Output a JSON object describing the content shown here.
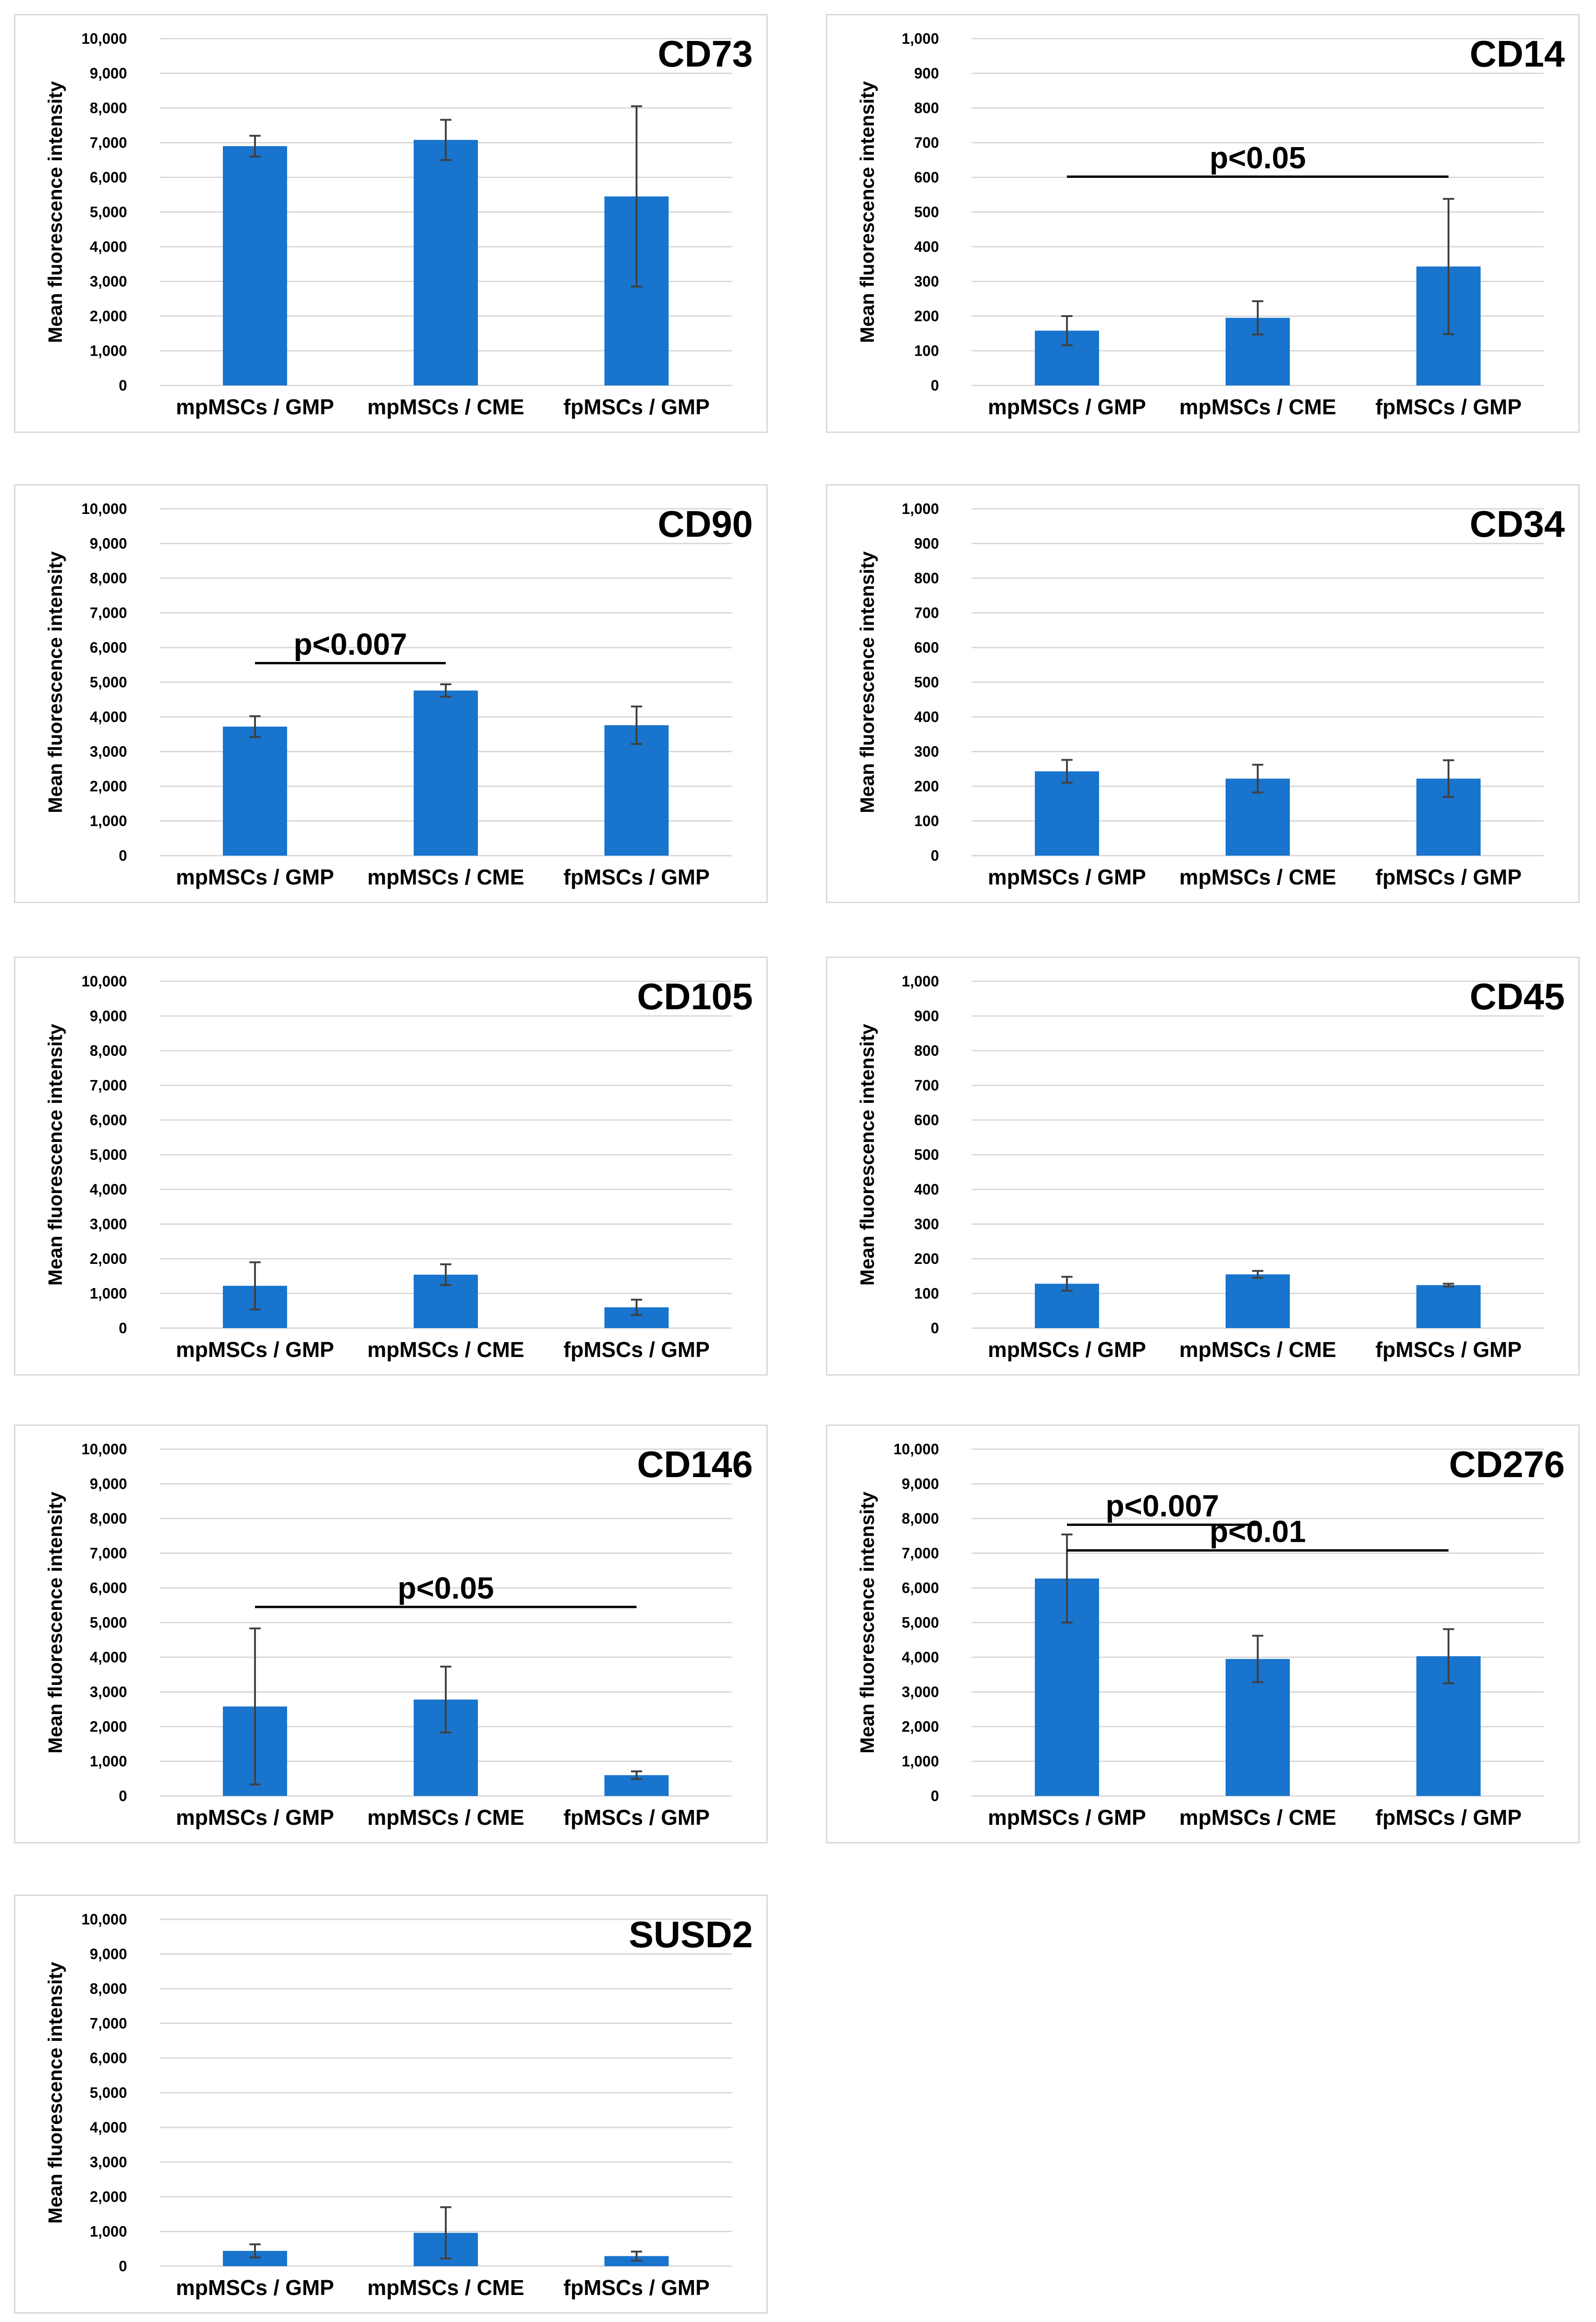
{
  "chart_data": [
    {
      "id": "cd73",
      "type": "bar",
      "title": "CD73",
      "ylabel": "Mean fluorescence intensity",
      "categories": [
        "mpMSCs / GMP",
        "mpMSCs / CME",
        "fpMSCs / GMP"
      ],
      "values": [
        6900,
        7080,
        5450
      ],
      "errors": [
        300,
        580,
        2600
      ],
      "ylim": [
        0,
        10000
      ],
      "ystep": 1000,
      "yticks": [
        "0",
        "1,000",
        "2,000",
        "3,000",
        "4,000",
        "5,000",
        "6,000",
        "7,000",
        "8,000",
        "9,000",
        "10,000"
      ],
      "significance": []
    },
    {
      "id": "cd14",
      "type": "bar",
      "title": "CD14",
      "ylabel": "Mean fluorescence intensity",
      "categories": [
        "mpMSCs / GMP",
        "mpMSCs / CME",
        "fpMSCs / GMP"
      ],
      "values": [
        158,
        195,
        343
      ],
      "errors": [
        42,
        48,
        195
      ],
      "ylim": [
        0,
        1000
      ],
      "ystep": 100,
      "yticks": [
        "0",
        "100",
        "200",
        "300",
        "400",
        "500",
        "600",
        "700",
        "800",
        "900",
        "1,000"
      ],
      "significance": [
        {
          "from": 0,
          "to": 2,
          "at": 602,
          "label": "p<0.05"
        }
      ]
    },
    {
      "id": "cd90",
      "type": "bar",
      "title": "CD90",
      "ylabel": "Mean fluorescence intensity",
      "categories": [
        "mpMSCs / GMP",
        "mpMSCs / CME",
        "fpMSCs / GMP"
      ],
      "values": [
        3720,
        4760,
        3760
      ],
      "errors": [
        300,
        180,
        540
      ],
      "ylim": [
        0,
        10000
      ],
      "ystep": 1000,
      "yticks": [
        "0",
        "1,000",
        "2,000",
        "3,000",
        "4,000",
        "5,000",
        "6,000",
        "7,000",
        "8,000",
        "9,000",
        "10,000"
      ],
      "significance": [
        {
          "from": 0,
          "to": 1,
          "at": 5550,
          "label": "p<0.007"
        }
      ]
    },
    {
      "id": "cd34",
      "type": "bar",
      "title": "CD34",
      "ylabel": "Mean fluorescence intensity",
      "categories": [
        "mpMSCs / GMP",
        "mpMSCs / CME",
        "fpMSCs / GMP"
      ],
      "values": [
        243,
        222,
        222
      ],
      "errors": [
        33,
        40,
        53
      ],
      "ylim": [
        0,
        1000
      ],
      "ystep": 100,
      "yticks": [
        "0",
        "100",
        "200",
        "300",
        "400",
        "500",
        "600",
        "700",
        "800",
        "900",
        "1,000"
      ],
      "significance": []
    },
    {
      "id": "cd105",
      "type": "bar",
      "title": "CD105",
      "ylabel": "Mean fluorescence intensity",
      "categories": [
        "mpMSCs / GMP",
        "mpMSCs / CME",
        "fpMSCs / GMP"
      ],
      "values": [
        1220,
        1540,
        600
      ],
      "errors": [
        680,
        300,
        220
      ],
      "ylim": [
        0,
        10000
      ],
      "ystep": 1000,
      "yticks": [
        "0",
        "1,000",
        "2,000",
        "3,000",
        "4,000",
        "5,000",
        "6,000",
        "7,000",
        "8,000",
        "9,000",
        "10,000"
      ],
      "significance": []
    },
    {
      "id": "cd45",
      "type": "bar",
      "title": "CD45",
      "ylabel": "Mean fluorescence intensity",
      "categories": [
        "mpMSCs / GMP",
        "mpMSCs / CME",
        "fpMSCs / GMP"
      ],
      "values": [
        128,
        155,
        124
      ],
      "errors": [
        20,
        10,
        4
      ],
      "ylim": [
        0,
        1000
      ],
      "ystep": 100,
      "yticks": [
        "0",
        "100",
        "200",
        "300",
        "400",
        "500",
        "600",
        "700",
        "800",
        "900",
        "1,000"
      ],
      "significance": []
    },
    {
      "id": "cd146",
      "type": "bar",
      "title": "CD146",
      "ylabel": "Mean fluorescence intensity",
      "categories": [
        "mpMSCs / GMP",
        "mpMSCs / CME",
        "fpMSCs / GMP"
      ],
      "values": [
        2580,
        2780,
        600
      ],
      "errors": [
        2250,
        950,
        110
      ],
      "ylim": [
        0,
        10000
      ],
      "ystep": 1000,
      "yticks": [
        "0",
        "1,000",
        "2,000",
        "3,000",
        "4,000",
        "5,000",
        "6,000",
        "7,000",
        "8,000",
        "9,000",
        "10,000"
      ],
      "significance": [
        {
          "from": 0,
          "to": 2,
          "at": 5450,
          "label": "p<0.05"
        }
      ]
    },
    {
      "id": "cd276",
      "type": "bar",
      "title": "CD276",
      "ylabel": "Mean fluorescence intensity",
      "categories": [
        "mpMSCs / GMP",
        "mpMSCs / CME",
        "fpMSCs / GMP"
      ],
      "values": [
        6270,
        3950,
        4030
      ],
      "errors": [
        1270,
        670,
        780
      ],
      "ylim": [
        0,
        10000
      ],
      "ystep": 1000,
      "yticks": [
        "0",
        "1,000",
        "2,000",
        "3,000",
        "4,000",
        "5,000",
        "6,000",
        "7,000",
        "8,000",
        "9,000",
        "10,000"
      ],
      "significance": [
        {
          "from": 0,
          "to": 1,
          "at": 7820,
          "label": "p<0.007"
        },
        {
          "from": 0,
          "to": 2,
          "at": 7080,
          "label": "p<0.01"
        }
      ]
    },
    {
      "id": "susd2",
      "type": "bar",
      "title": "SUSD2",
      "ylabel": "Mean fluorescence intensity",
      "categories": [
        "mpMSCs / GMP",
        "mpMSCs / CME",
        "fpMSCs / GMP"
      ],
      "values": [
        440,
        960,
        290
      ],
      "errors": [
        190,
        740,
        130
      ],
      "ylim": [
        0,
        10000
      ],
      "ystep": 1000,
      "yticks": [
        "0",
        "1,000",
        "2,000",
        "3,000",
        "4,000",
        "5,000",
        "6,000",
        "7,000",
        "8,000",
        "9,000",
        "10,000"
      ],
      "significance": []
    }
  ],
  "style": {
    "bar_color": "#1874cd",
    "grid_color": "#d9d9d9",
    "error_color": "#404040"
  }
}
